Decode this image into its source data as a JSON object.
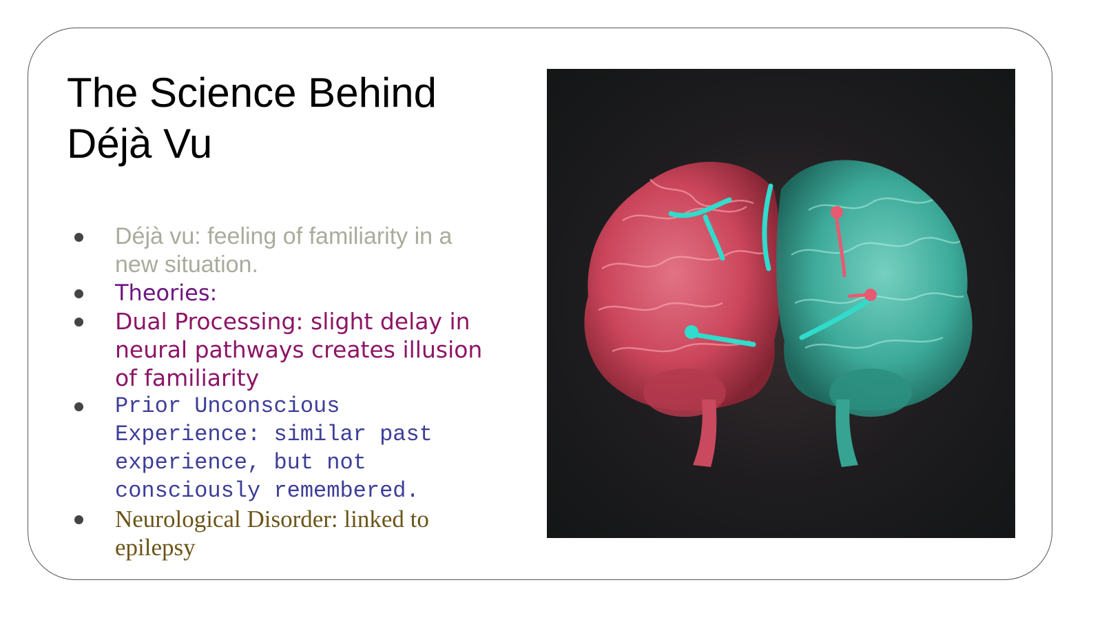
{
  "slide": {
    "title": "The Science Behind Déjà Vu",
    "bullets": [
      {
        "text": "Déjà vu: feeling of familiarity in a new situation.",
        "color": "#aaab9c"
      },
      {
        "text": "Theories:",
        "color": "#6e1580"
      },
      {
        "text": "Dual Processing: slight delay in neural pathways creates illusion of familiarity",
        "color": "#8d1466"
      },
      {
        "text": "Prior Unconscious Experience: similar past experience, but not consciously remembered.",
        "color": "#3d3d99"
      },
      {
        "text": "Neurological Disorder: linked to epilepsy",
        "color": "#6b5417"
      }
    ],
    "image": {
      "subject": "brain-illustration",
      "left_hemisphere_color": "#e0506a",
      "right_hemisphere_color": "#3fc4b0",
      "pathway_color": "#30dccc"
    }
  }
}
